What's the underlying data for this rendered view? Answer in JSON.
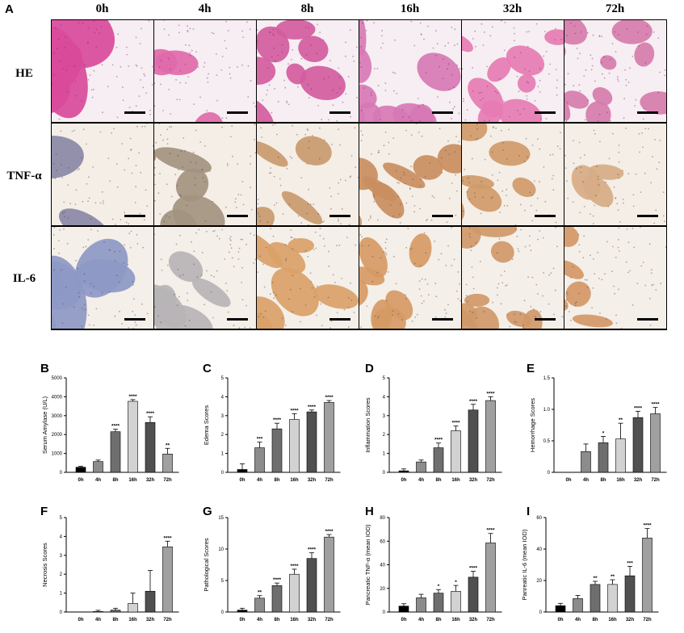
{
  "figure": {
    "panel_labels": [
      "A",
      "B",
      "C",
      "D",
      "E",
      "F",
      "G",
      "H",
      "I"
    ],
    "timepoints": [
      "0h",
      "4h",
      "8h",
      "16h",
      "32h",
      "72h"
    ],
    "rows": [
      "HE",
      "TNF-α",
      "IL-6"
    ]
  },
  "micrograph_styles": {
    "HE": {
      "bg": "#f6eef2",
      "tissue": [
        "#d94a9b",
        "#e06aaa",
        "#d25c9f",
        "#d778b5",
        "#e67cb3",
        "#d67cad"
      ],
      "dot": "#7a2b78"
    },
    "TNF-α": {
      "bg": "#f5eee6",
      "tissue": [
        "#8a88a6",
        "#a39280",
        "#c99a6e",
        "#c98e60",
        "#cf9a6a",
        "#d6ad86"
      ],
      "dot": "#5a4a4a"
    },
    "IL-6": {
      "bg": "#f4efe8",
      "tissue": [
        "#8d98c4",
        "#b7b4b6",
        "#d9a168",
        "#d69a64",
        "#cf9868",
        "#d49866"
      ],
      "dot": "#5a4a4a"
    }
  },
  "chart_data": [
    {
      "panel": "B",
      "type": "bar",
      "ylabel": "Serum Amylase (U/L)",
      "ylim": [
        0,
        5000
      ],
      "yticks": [
        0,
        1000,
        2000,
        3000,
        4000,
        5000
      ],
      "categories": [
        "0h",
        "4h",
        "8h",
        "16h",
        "32h",
        "72h"
      ],
      "values": [
        270,
        570,
        2150,
        3760,
        2640,
        970
      ],
      "errors": [
        50,
        80,
        130,
        90,
        300,
        300
      ],
      "significance": [
        "",
        "",
        "****",
        "****",
        "****",
        "**"
      ]
    },
    {
      "panel": "C",
      "type": "bar",
      "ylabel": "Edema Scores",
      "ylim": [
        0,
        5
      ],
      "yticks": [
        0,
        1,
        2,
        3,
        4,
        5
      ],
      "categories": [
        "0h",
        "4h",
        "8h",
        "16h",
        "32h",
        "72h"
      ],
      "values": [
        0.15,
        1.3,
        2.3,
        2.8,
        3.2,
        3.7
      ],
      "errors": [
        0.3,
        0.3,
        0.3,
        0.3,
        0.1,
        0.1
      ],
      "significance": [
        "",
        "***",
        "****",
        "****",
        "****",
        "****"
      ]
    },
    {
      "panel": "D",
      "type": "bar",
      "ylabel": "Inflammation Scores",
      "ylim": [
        0,
        5
      ],
      "yticks": [
        0,
        1,
        2,
        3,
        4,
        5
      ],
      "categories": [
        "0h",
        "4h",
        "8h",
        "16h",
        "32h",
        "72h"
      ],
      "values": [
        0.08,
        0.55,
        1.3,
        2.2,
        3.3,
        3.8
      ],
      "errors": [
        0.1,
        0.1,
        0.25,
        0.25,
        0.3,
        0.2
      ],
      "significance": [
        "",
        "",
        "****",
        "****",
        "****",
        "****"
      ]
    },
    {
      "panel": "E",
      "type": "bar",
      "ylabel": "Hemorrhage Scores",
      "ylim": [
        0,
        1.5
      ],
      "yticks": [
        0,
        0.5,
        1.0,
        1.5
      ],
      "categories": [
        "0h",
        "4h",
        "8h",
        "16h",
        "32h",
        "72h"
      ],
      "values": [
        0,
        0.33,
        0.47,
        0.53,
        0.87,
        0.93
      ],
      "errors": [
        0,
        0.12,
        0.1,
        0.25,
        0.1,
        0.1
      ],
      "significance": [
        "",
        "",
        "*",
        "**",
        "****",
        "****"
      ]
    },
    {
      "panel": "F",
      "type": "bar",
      "ylabel": "Necrosis Scores",
      "ylim": [
        0,
        5
      ],
      "yticks": [
        0,
        1,
        2,
        3,
        4,
        5
      ],
      "categories": [
        "0h",
        "4h",
        "8h",
        "16h",
        "32h",
        "72h"
      ],
      "values": [
        0,
        0.03,
        0.1,
        0.45,
        1.1,
        3.45
      ],
      "errors": [
        0,
        0.06,
        0.1,
        0.55,
        1.1,
        0.3
      ],
      "significance": [
        "",
        "",
        "",
        "",
        "",
        "****"
      ]
    },
    {
      "panel": "G",
      "type": "bar",
      "ylabel": "Pathological Scores",
      "ylim": [
        0,
        15
      ],
      "yticks": [
        0,
        5,
        10,
        15
      ],
      "categories": [
        "0h",
        "4h",
        "8h",
        "16h",
        "32h",
        "72h"
      ],
      "values": [
        0.3,
        2.2,
        4.2,
        6.0,
        8.5,
        11.9
      ],
      "errors": [
        0.3,
        0.4,
        0.4,
        0.8,
        0.9,
        0.4
      ],
      "significance": [
        "",
        "**",
        "****",
        "****",
        "****",
        "****"
      ]
    },
    {
      "panel": "H",
      "type": "bar",
      "ylabel": "Pancreatic TNF-α (mean IOD)",
      "ylim": [
        0,
        80
      ],
      "yticks": [
        0,
        20,
        40,
        60,
        80
      ],
      "categories": [
        "0h",
        "4h",
        "8h",
        "16h",
        "32h",
        "72h"
      ],
      "values": [
        5,
        12,
        16,
        17.5,
        29.5,
        58.5
      ],
      "errors": [
        2,
        3,
        3,
        5,
        5,
        8
      ],
      "significance": [
        "",
        "",
        "*",
        "*",
        "****",
        "****"
      ]
    },
    {
      "panel": "I",
      "type": "bar",
      "ylabel": "Panreatic IL-6 (mean IOD)",
      "ylim": [
        0,
        60
      ],
      "yticks": [
        0,
        20,
        40,
        60
      ],
      "categories": [
        "0h",
        "4h",
        "8h",
        "16h",
        "32h",
        "72h"
      ],
      "values": [
        4,
        8.5,
        17.5,
        17.5,
        23,
        47
      ],
      "errors": [
        1.5,
        2,
        2,
        3,
        6,
        6
      ],
      "significance": [
        "",
        "",
        "**",
        "**",
        "***",
        "****"
      ]
    }
  ],
  "bar_colors": [
    "#000000",
    "#8c8c8c",
    "#6e6e6e",
    "#d2d2d2",
    "#505050",
    "#a0a0a0"
  ]
}
